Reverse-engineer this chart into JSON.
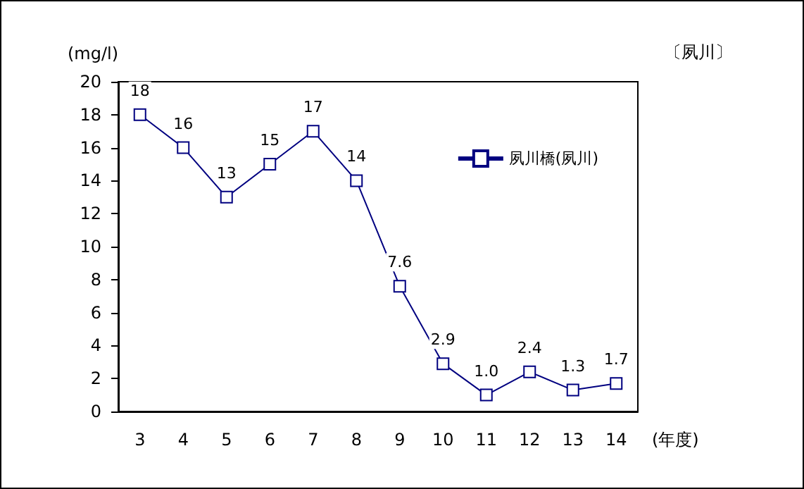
{
  "chart_data": {
    "type": "line",
    "categories": [
      "3",
      "4",
      "5",
      "6",
      "7",
      "8",
      "9",
      "10",
      "11",
      "12",
      "13",
      "14"
    ],
    "series": [
      {
        "name": "夙川橋(夙川)",
        "color": "#000080",
        "values": [
          18,
          16,
          13,
          15,
          17,
          14,
          7.6,
          2.9,
          1.0,
          2.4,
          1.3,
          1.7
        ],
        "value_labels": [
          "18",
          "16",
          "13",
          "15",
          "17",
          "14",
          "7.6",
          "2.9",
          "1.0",
          "2.4",
          "1.3",
          "1.7"
        ]
      }
    ],
    "ylim": [
      0,
      20
    ],
    "yticks": [
      0,
      2,
      4,
      6,
      8,
      10,
      12,
      14,
      16,
      18,
      20
    ],
    "ylabel": "(mg/l)",
    "xlabel": "(年度)",
    "annotations": [
      "〔夙川〕"
    ],
    "grid": false,
    "legend": "top right",
    "marker": "square",
    "line_style": "solid"
  }
}
